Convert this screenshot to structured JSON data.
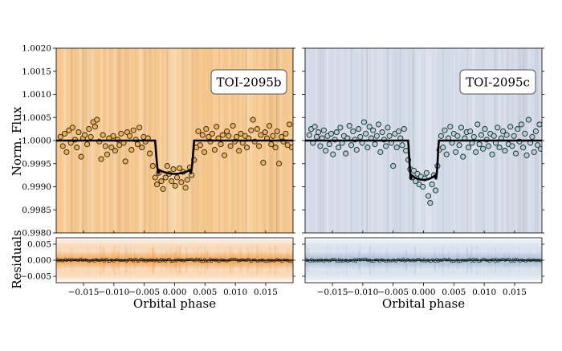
{
  "chart_data": {
    "type": "scatter",
    "ylabel_main": "Norm. Flux",
    "ylabel_resid": "Residuals",
    "xlabel": "Orbital phase",
    "main_ylim": [
      0.998,
      1.002
    ],
    "main_yticks": [
      "0.9980",
      "0.9985",
      "0.9990",
      "0.9995",
      "1.0000",
      "1.0005",
      "1.0010",
      "1.0015",
      "1.0020"
    ],
    "resid_ylim": [
      -0.007,
      0.007
    ],
    "resid_yticks": [
      "-0.005",
      "0.000",
      "0.005"
    ],
    "xlim": [
      -0.0195,
      0.0195
    ],
    "xticks": [
      "-0.015",
      "-0.010",
      "-0.005",
      "0.000",
      "0.005",
      "0.010",
      "0.015"
    ],
    "panels": [
      {
        "label": "TOI-2095b",
        "bg_color": "#f6c88e",
        "point_color": "#f2b04a",
        "resid_color": "#ef9c46",
        "baseline": 1.0,
        "depth": 0.00072,
        "half_duration": 0.0032,
        "ingress": 0.0006,
        "points": [
          [
            -0.0188,
            1.00008
          ],
          [
            -0.0184,
            0.99988
          ],
          [
            -0.0181,
            1.00015
          ],
          [
            -0.0178,
            0.99975
          ],
          [
            -0.0174,
            1.00022
          ],
          [
            -0.0171,
            0.99995
          ],
          [
            -0.0168,
            1.00028
          ],
          [
            -0.0164,
            1.00002
          ],
          [
            -0.0161,
            0.99985
          ],
          [
            -0.0158,
            1.00018
          ],
          [
            -0.0154,
            0.99965
          ],
          [
            -0.0151,
            1.00005
          ],
          [
            -0.0148,
            1.00012
          ],
          [
            -0.0144,
            0.99992
          ],
          [
            -0.0141,
            1.00025
          ],
          [
            -0.0138,
            1.00008
          ],
          [
            -0.0134,
            1.0004
          ],
          [
            -0.0131,
            1.0003
          ],
          [
            -0.0128,
            1.00045
          ],
          [
            -0.0124,
            0.99998
          ],
          [
            -0.0121,
            0.9996
          ],
          [
            -0.0118,
            1.00012
          ],
          [
            -0.0114,
            0.99988
          ],
          [
            -0.0111,
            0.9997
          ],
          [
            -0.0108,
            1.00005
          ],
          [
            -0.0104,
            0.99985
          ],
          [
            -0.0101,
            1.0001
          ],
          [
            -0.0098,
            0.99978
          ],
          [
            -0.0094,
            1.00002
          ],
          [
            -0.0091,
            0.9999
          ],
          [
            -0.0088,
            1.00015
          ],
          [
            -0.0084,
            0.99995
          ],
          [
            -0.0081,
            0.99955
          ],
          [
            -0.0078,
            1.00018
          ],
          [
            -0.0074,
            1.0001
          ],
          [
            -0.0071,
            0.9998
          ],
          [
            -0.0068,
            1.00022
          ],
          [
            -0.0064,
            1.00002
          ],
          [
            -0.0061,
            0.99992
          ],
          [
            -0.0058,
            1.00028
          ],
          [
            -0.0054,
            0.99985
          ],
          [
            -0.0051,
            1.00008
          ],
          [
            -0.0048,
            0.99998
          ],
          [
            -0.0044,
            1.00005
          ],
          [
            -0.0041,
            0.99972
          ],
          [
            -0.0036,
            0.99945
          ],
          [
            -0.0032,
            0.9992
          ],
          [
            -0.0029,
            0.99905
          ],
          [
            -0.0026,
            0.9993
          ],
          [
            -0.0022,
            0.99912
          ],
          [
            -0.0019,
            0.99895
          ],
          [
            -0.0015,
            0.9992
          ],
          [
            -0.0012,
            0.99945
          ],
          [
            -0.0009,
            0.99928
          ],
          [
            -0.0005,
            0.99912
          ],
          [
            -0.0002,
            0.99938
          ],
          [
            0.0001,
            0.99902
          ],
          [
            0.0004,
            0.9992
          ],
          [
            0.0008,
            0.9994
          ],
          [
            0.0011,
            0.9991
          ],
          [
            0.0014,
            0.99932
          ],
          [
            0.0018,
            0.99898
          ],
          [
            0.0021,
            0.99915
          ],
          [
            0.0025,
            0.99942
          ],
          [
            0.0028,
            0.99925
          ],
          [
            0.0032,
            0.99958
          ],
          [
            0.0036,
            0.99985
          ],
          [
            0.0039,
            1.0002
          ],
          [
            0.0042,
            0.9999
          ],
          [
            0.0046,
            1.00012
          ],
          [
            0.0049,
            0.99975
          ],
          [
            0.0052,
            1.00025
          ],
          [
            0.0056,
            1.00008
          ],
          [
            0.0059,
            0.99998
          ],
          [
            0.0062,
            1.00015
          ],
          [
            0.0066,
            0.9998
          ],
          [
            0.0069,
            1.0003
          ],
          [
            0.0072,
            1.00005
          ],
          [
            0.0076,
            0.99992
          ],
          [
            0.0079,
            1.00012
          ],
          [
            0.0082,
            0.99968
          ],
          [
            0.0086,
            1.0002
          ],
          [
            0.0089,
            1.0001
          ],
          [
            0.0092,
            0.99988
          ],
          [
            0.0096,
            1.00032
          ],
          [
            0.0099,
            0.99998
          ],
          [
            0.0102,
            1.00008
          ],
          [
            0.0106,
            0.99978
          ],
          [
            0.0109,
            1.00015
          ],
          [
            0.0112,
            0.99995
          ],
          [
            0.0116,
            1.0001
          ],
          [
            0.0119,
            0.99985
          ],
          [
            0.0122,
            1.00005
          ],
          [
            0.0126,
            1.00022
          ],
          [
            0.0129,
            1.00045
          ],
          [
            0.0132,
            0.99998
          ],
          [
            0.0136,
            1.00025
          ],
          [
            0.0139,
            0.99988
          ],
          [
            0.0142,
            1.00012
          ],
          [
            0.0146,
            0.99952
          ],
          [
            0.0149,
            1.00018
          ],
          [
            0.0152,
            1.00005
          ],
          [
            0.0156,
            1.00032
          ],
          [
            0.0159,
            0.99992
          ],
          [
            0.0162,
            1.0001
          ],
          [
            0.0166,
            0.99985
          ],
          [
            0.0169,
            1.0002
          ],
          [
            0.0172,
            0.9995
          ],
          [
            0.0176,
            1.00008
          ],
          [
            0.0179,
            0.99998
          ],
          [
            0.0183,
            1.00015
          ],
          [
            0.0186,
            0.9999
          ],
          [
            0.0189,
            1.00035
          ],
          [
            0.0193,
            0.99985
          ]
        ]
      },
      {
        "label": "TOI-2095c",
        "bg_color": "#d3dbe8",
        "point_color": "#a9d4d8",
        "resid_color": "#9fb7d3",
        "baseline": 1.0,
        "depth": 0.00085,
        "half_duration": 0.0025,
        "ingress": 0.0005,
        "points": [
          [
            -0.0188,
            1.00012
          ],
          [
            -0.0185,
            1.00025
          ],
          [
            -0.0182,
            0.99995
          ],
          [
            -0.0179,
            1.0003
          ],
          [
            -0.0176,
            1.00008
          ],
          [
            -0.0173,
            1.00018
          ],
          [
            -0.017,
            0.99988
          ],
          [
            -0.0167,
            1.00005
          ],
          [
            -0.0164,
            1.00022
          ],
          [
            -0.0161,
            0.99978
          ],
          [
            -0.0158,
            1.0001
          ],
          [
            -0.0155,
            0.99992
          ],
          [
            -0.0152,
            1.00015
          ],
          [
            -0.0149,
            0.9997
          ],
          [
            -0.0146,
            1.00002
          ],
          [
            -0.0143,
            1.00018
          ],
          [
            -0.014,
            0.99985
          ],
          [
            -0.0137,
            1.00028
          ],
          [
            -0.0134,
            0.99995
          ],
          [
            -0.0131,
            1.0001
          ],
          [
            -0.0128,
            0.99972
          ],
          [
            -0.0125,
            1.00005
          ],
          [
            -0.0122,
            1.00032
          ],
          [
            -0.0119,
            0.9999
          ],
          [
            -0.0116,
            1.0002
          ],
          [
            -0.0113,
            1.00002
          ],
          [
            -0.011,
            0.9998
          ],
          [
            -0.0107,
            1.00025
          ],
          [
            -0.0104,
            1.00008
          ],
          [
            -0.0101,
            0.99995
          ],
          [
            -0.0098,
            1.0004
          ],
          [
            -0.0095,
            1.00015
          ],
          [
            -0.0092,
            0.99985
          ],
          [
            -0.0089,
            1.0003
          ],
          [
            -0.0086,
            1.00005
          ],
          [
            -0.0083,
            1.00022
          ],
          [
            -0.008,
            0.99992
          ],
          [
            -0.0077,
            1.0001
          ],
          [
            -0.0074,
            1.00035
          ],
          [
            -0.0071,
            0.99975
          ],
          [
            -0.0068,
            1.00018
          ],
          [
            -0.0065,
            1.00002
          ],
          [
            -0.0062,
            0.99988
          ],
          [
            -0.0059,
            1.00028
          ],
          [
            -0.0056,
            1.0001
          ],
          [
            -0.0053,
            0.99995
          ],
          [
            -0.005,
            0.99945
          ],
          [
            -0.0047,
            1.00015
          ],
          [
            -0.0044,
            0.99985
          ],
          [
            -0.0041,
            1.0002
          ],
          [
            -0.0038,
            1.00005
          ],
          [
            -0.0035,
            0.9999
          ],
          [
            -0.0032,
            1.00025
          ],
          [
            -0.0029,
            0.99978
          ],
          [
            -0.0025,
            0.99958
          ],
          [
            -0.0022,
            0.99938
          ],
          [
            -0.0019,
            0.9992
          ],
          [
            -0.0016,
            0.99935
          ],
          [
            -0.0013,
            0.99912
          ],
          [
            -0.001,
            0.99928
          ],
          [
            -0.0007,
            0.99905
          ],
          [
            -0.0004,
            0.99922
          ],
          [
            -0.0001,
            0.999
          ],
          [
            0.0002,
            0.99918
          ],
          [
            0.0005,
            0.9993
          ],
          [
            0.0008,
            0.9988
          ],
          [
            0.0011,
            0.99865
          ],
          [
            0.0014,
            0.99905
          ],
          [
            0.0017,
            0.99925
          ],
          [
            0.002,
            0.99892
          ],
          [
            0.0023,
            0.99945
          ],
          [
            0.0026,
            0.9998
          ],
          [
            0.0029,
            1.0001
          ],
          [
            0.0032,
            0.99985
          ],
          [
            0.0035,
            1.00022
          ],
          [
            0.0038,
            0.9997
          ],
          [
            0.0041,
            1.00005
          ],
          [
            0.0044,
            1.0003
          ],
          [
            0.0047,
            0.99995
          ],
          [
            0.005,
            1.00015
          ],
          [
            0.0053,
            0.99975
          ],
          [
            0.0056,
            1.0001
          ],
          [
            0.0059,
            0.9999
          ],
          [
            0.0062,
            1.00028
          ],
          [
            0.0065,
            0.99965
          ],
          [
            0.0068,
            1.00005
          ],
          [
            0.0071,
            1.00018
          ],
          [
            0.0074,
            0.99985
          ],
          [
            0.0077,
            1.0002
          ],
          [
            0.008,
            0.99995
          ],
          [
            0.0083,
            1.00008
          ],
          [
            0.0086,
            0.99975
          ],
          [
            0.0089,
            1.00035
          ],
          [
            0.0092,
            0.99992
          ],
          [
            0.0095,
            1.00012
          ],
          [
            0.0098,
            0.99982
          ],
          [
            0.0101,
            1.00025
          ],
          [
            0.0104,
            1.00002
          ],
          [
            0.0107,
            0.99988
          ],
          [
            0.011,
            1.00015
          ],
          [
            0.0113,
            0.9997
          ],
          [
            0.0116,
            1.0001
          ],
          [
            0.0119,
            0.99995
          ],
          [
            0.0122,
            1.00028
          ],
          [
            0.0125,
            0.99985
          ],
          [
            0.0128,
            1.00005
          ],
          [
            0.0131,
            1.0002
          ],
          [
            0.0134,
            0.99978
          ],
          [
            0.0137,
            1.00012
          ],
          [
            0.014,
            0.99992
          ],
          [
            0.0143,
            1.0003
          ],
          [
            0.0146,
            0.99988
          ],
          [
            0.0149,
            1.0001
          ],
          [
            0.0152,
            0.99972
          ],
          [
            0.0155,
            1.00025
          ],
          [
            0.0158,
            0.99998
          ],
          [
            0.0161,
            1.00035
          ],
          [
            0.0164,
            0.99985
          ],
          [
            0.0167,
            1.00015
          ],
          [
            0.017,
            0.99968
          ],
          [
            0.0173,
            1.00045
          ],
          [
            0.0176,
            0.99995
          ],
          [
            0.0179,
            1.00008
          ],
          [
            0.0182,
            0.99975
          ],
          [
            0.0185,
            1.0002
          ],
          [
            0.0188,
            0.9999
          ],
          [
            0.0191,
            1.00035
          ],
          [
            0.0193,
            0.99982
          ]
        ]
      }
    ]
  }
}
